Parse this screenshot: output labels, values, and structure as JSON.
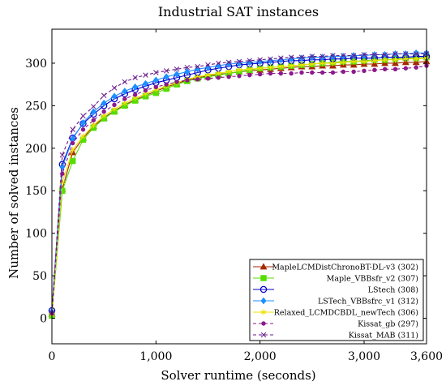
{
  "chart_data": {
    "type": "line",
    "title": "Industrial SAT instances",
    "xlabel": "Solver runtime (seconds)",
    "ylabel": "Number of solved instances",
    "xlim": [
      0,
      3600
    ],
    "ylim": [
      -30,
      340
    ],
    "xticks": [
      0,
      1000,
      2000,
      3000,
      3600
    ],
    "xtick_labels": [
      "0",
      "1,000",
      "2,000",
      "3,000",
      "3,600"
    ],
    "yticks": [
      0,
      50,
      100,
      150,
      200,
      250,
      300
    ],
    "ytick_labels": [
      "0",
      "50",
      "100",
      "150",
      "200",
      "250",
      "300"
    ],
    "grid": false,
    "legend_position": "bottom-right",
    "x": [
      0,
      100,
      200,
      300,
      400,
      500,
      600,
      700,
      800,
      900,
      1000,
      1100,
      1200,
      1300,
      1400,
      1500,
      1600,
      1700,
      1800,
      1900,
      2000,
      2100,
      2200,
      2300,
      2400,
      2500,
      2600,
      2700,
      2800,
      2900,
      3000,
      3100,
      3200,
      3300,
      3400,
      3500,
      3600
    ],
    "series": [
      {
        "name": "MapleLCMDistChronoBT-DL-v3 (302)",
        "color": "#a52a00",
        "marker": "triangle",
        "dash": "solid",
        "values": [
          5,
          152,
          195,
          212,
          226,
          236,
          244,
          251,
          257,
          262,
          267,
          272,
          276,
          280,
          283,
          285,
          287,
          288,
          290,
          291,
          292,
          293,
          294,
          295,
          296,
          296,
          297,
          297,
          298,
          298,
          299,
          299,
          300,
          300,
          301,
          301,
          302
        ]
      },
      {
        "name": "Maple_VBBsfr_v2 (307)",
        "color": "#55dd00",
        "marker": "square",
        "dash": "solid",
        "values": [
          3,
          150,
          185,
          210,
          224,
          235,
          243,
          250,
          256,
          261,
          265,
          270,
          275,
          279,
          282,
          284,
          286,
          288,
          290,
          292,
          294,
          295,
          296,
          297,
          298,
          299,
          300,
          301,
          302,
          302,
          303,
          304,
          304,
          305,
          306,
          306,
          307
        ]
      },
      {
        "name": "LStech (308)",
        "color": "#0000cc",
        "marker": "circle-open",
        "dash": "solid",
        "values": [
          9,
          181,
          212,
          229,
          240,
          250,
          258,
          264,
          269,
          273,
          277,
          280,
          283,
          286,
          289,
          292,
          294,
          296,
          298,
          299,
          300,
          301,
          302,
          303,
          303,
          304,
          304,
          305,
          305,
          306,
          306,
          306,
          307,
          307,
          307,
          308,
          308
        ]
      },
      {
        "name": "LSTech_VBBsfrc_v1 (312)",
        "color": "#1e8fff",
        "marker": "diamond",
        "dash": "solid",
        "values": [
          8,
          178,
          211,
          230,
          243,
          253,
          261,
          267,
          272,
          276,
          280,
          284,
          287,
          290,
          293,
          295,
          297,
          299,
          300,
          301,
          302,
          303,
          304,
          305,
          306,
          307,
          307,
          308,
          308,
          309,
          309,
          310,
          310,
          311,
          311,
          312,
          312
        ]
      },
      {
        "name": "Relaxed_LCMDCBDL_newTech (306)",
        "color": "#f0e000",
        "marker": "star",
        "dash": "solid",
        "values": [
          4,
          160,
          198,
          214,
          227,
          238,
          246,
          253,
          259,
          264,
          269,
          273,
          277,
          281,
          284,
          286,
          288,
          290,
          292,
          293,
          294,
          295,
          296,
          297,
          298,
          299,
          300,
          300,
          301,
          302,
          302,
          303,
          304,
          304,
          305,
          305,
          306
        ]
      },
      {
        "name": "Kissat_gb (297)",
        "color": "#8b1a8b",
        "marker": "dot",
        "dash": "dashed",
        "values": [
          6,
          170,
          206,
          222,
          233,
          243,
          251,
          258,
          263,
          268,
          272,
          275,
          278,
          280,
          281,
          282,
          283,
          284,
          285,
          286,
          287,
          288,
          288,
          288,
          289,
          289,
          289,
          289,
          290,
          290,
          291,
          292,
          293,
          293,
          294,
          295,
          297
        ]
      },
      {
        "name": "Kissat_MAB (311)",
        "color": "#6a1a8a",
        "marker": "x",
        "dash": "dashed",
        "values": [
          6,
          192,
          222,
          238,
          249,
          262,
          271,
          278,
          283,
          286,
          289,
          291,
          293,
          295,
          296,
          298,
          300,
          301,
          302,
          303,
          304,
          305,
          306,
          307,
          307,
          308,
          308,
          309,
          309,
          309,
          310,
          310,
          310,
          311,
          311,
          311,
          311
        ]
      }
    ]
  }
}
